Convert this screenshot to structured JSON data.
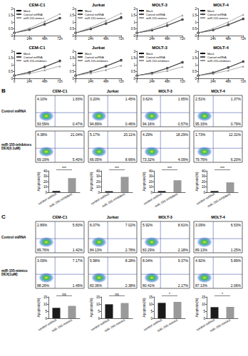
{
  "chart_data": [
    {
      "type": "line",
      "title": "CEM-C1",
      "categories": [
        "0",
        "24h",
        "48h",
        "72h"
      ],
      "ylim": [
        0,
        2
      ],
      "yticks": [
        0,
        0.5,
        1,
        1.5,
        2
      ],
      "grid": false,
      "legend": "upper left",
      "series": [
        {
          "name": "Mock",
          "color": "#000000",
          "marker": "circle",
          "values": [
            0.2,
            0.45,
            0.85,
            1.3
          ]
        },
        {
          "name": "Control miRNA",
          "color": "#555555",
          "marker": "square",
          "values": [
            0.2,
            0.43,
            0.82,
            1.28
          ]
        },
        {
          "name": "miR-155-mimics",
          "color": "#999999",
          "marker": "triangle",
          "values": [
            0.2,
            0.55,
            1.05,
            1.6
          ]
        }
      ]
    },
    {
      "type": "line",
      "title": "Jurkat",
      "categories": [
        "0",
        "24h",
        "48h",
        "72h"
      ],
      "ylim": [
        0,
        2
      ],
      "yticks": [
        0,
        0.5,
        1,
        1.5,
        2
      ],
      "grid": false,
      "legend": "upper left",
      "series": [
        {
          "name": "Mock",
          "color": "#000000",
          "marker": "circle",
          "values": [
            0.2,
            0.5,
            0.9,
            1.35
          ]
        },
        {
          "name": "Control miRNA",
          "color": "#555555",
          "marker": "square",
          "values": [
            0.2,
            0.48,
            0.88,
            1.3
          ]
        },
        {
          "name": "miR-155-mimics",
          "color": "#999999",
          "marker": "triangle",
          "values": [
            0.2,
            0.6,
            1.1,
            1.65
          ]
        }
      ]
    },
    {
      "type": "line",
      "title": "MOLT-3",
      "categories": [
        "0",
        "24h",
        "48h",
        "72h"
      ],
      "ylim": [
        0,
        2
      ],
      "yticks": [
        0,
        0.5,
        1,
        1.5,
        2
      ],
      "grid": false,
      "legend": "upper left",
      "series": [
        {
          "name": "Mock",
          "color": "#000000",
          "marker": "circle",
          "values": [
            0.2,
            0.4,
            0.75,
            1.2
          ]
        },
        {
          "name": "Control miRNA",
          "color": "#555555",
          "marker": "square",
          "values": [
            0.2,
            0.4,
            0.73,
            1.18
          ]
        },
        {
          "name": "miR-155-mimics",
          "color": "#999999",
          "marker": "triangle",
          "values": [
            0.2,
            0.5,
            0.95,
            1.5
          ]
        }
      ]
    },
    {
      "type": "line",
      "title": "MOLT-4",
      "categories": [
        "0",
        "24h",
        "48h",
        "72h"
      ],
      "ylim": [
        0,
        2
      ],
      "yticks": [
        0,
        0.5,
        1,
        1.5,
        2
      ],
      "grid": false,
      "legend": "upper left",
      "series": [
        {
          "name": "Mock",
          "color": "#000000",
          "marker": "circle",
          "values": [
            0.2,
            0.42,
            0.8,
            1.25
          ]
        },
        {
          "name": "Control miRNA",
          "color": "#555555",
          "marker": "square",
          "values": [
            0.2,
            0.41,
            0.78,
            1.22
          ]
        },
        {
          "name": "miR-155-mimics",
          "color": "#999999",
          "marker": "triangle",
          "values": [
            0.2,
            0.52,
            1.0,
            1.55
          ]
        }
      ]
    },
    {
      "type": "line",
      "title": "CEM-C1",
      "categories": [
        "0",
        "24h",
        "48h",
        "72h"
      ],
      "ylim": [
        0,
        2
      ],
      "yticks": [
        0,
        0.5,
        1,
        1.5,
        2
      ],
      "grid": false,
      "legend": "upper left",
      "series": [
        {
          "name": "Mock",
          "color": "#000000",
          "marker": "circle",
          "values": [
            0.2,
            0.45,
            0.85,
            1.3
          ]
        },
        {
          "name": "Control miRNA",
          "color": "#555555",
          "marker": "square",
          "values": [
            0.2,
            0.44,
            0.83,
            1.27
          ]
        },
        {
          "name": "miR-155-inhibitors",
          "color": "#999999",
          "marker": "triangle",
          "values": [
            0.2,
            0.35,
            0.6,
            0.9
          ]
        }
      ]
    },
    {
      "type": "line",
      "title": "Jurkat",
      "categories": [
        "0",
        "24h",
        "48h",
        "72h"
      ],
      "ylim": [
        0,
        2
      ],
      "yticks": [
        0,
        0.5,
        1,
        1.5,
        2
      ],
      "grid": false,
      "legend": "upper left",
      "series": [
        {
          "name": "Mock",
          "color": "#000000",
          "marker": "circle",
          "values": [
            0.2,
            0.5,
            0.9,
            1.35
          ]
        },
        {
          "name": "Control miRNA",
          "color": "#555555",
          "marker": "square",
          "values": [
            0.2,
            0.49,
            0.88,
            1.32
          ]
        },
        {
          "name": "miR-155-inhibitors",
          "color": "#999999",
          "marker": "triangle",
          "values": [
            0.2,
            0.38,
            0.62,
            0.95
          ]
        }
      ]
    },
    {
      "type": "line",
      "title": "MOLT-3",
      "categories": [
        "0",
        "24h",
        "48h",
        "72h"
      ],
      "ylim": [
        0,
        2
      ],
      "yticks": [
        0,
        0.5,
        1,
        1.5,
        2
      ],
      "grid": false,
      "legend": "upper left",
      "series": [
        {
          "name": "Mock",
          "color": "#000000",
          "marker": "circle",
          "values": [
            0.2,
            0.4,
            0.75,
            1.2
          ]
        },
        {
          "name": "Control miRNA",
          "color": "#555555",
          "marker": "square",
          "values": [
            0.2,
            0.39,
            0.74,
            1.17
          ]
        },
        {
          "name": "miR-155-inhibitors",
          "color": "#999999",
          "marker": "triangle",
          "values": [
            0.2,
            0.33,
            0.55,
            0.85
          ]
        }
      ]
    },
    {
      "type": "line",
      "title": "MOLT-4",
      "categories": [
        "0",
        "24h",
        "48h",
        "72h"
      ],
      "ylim": [
        0,
        2
      ],
      "yticks": [
        0,
        0.5,
        1,
        1.5,
        2
      ],
      "grid": false,
      "legend": "upper left",
      "series": [
        {
          "name": "Mock",
          "color": "#000000",
          "marker": "circle",
          "values": [
            0.2,
            0.42,
            0.8,
            1.25
          ]
        },
        {
          "name": "Control miRNA",
          "color": "#555555",
          "marker": "square",
          "values": [
            0.2,
            0.41,
            0.79,
            1.23
          ]
        },
        {
          "name": "miR-155-inhibitors",
          "color": "#999999",
          "marker": "triangle",
          "values": [
            0.2,
            0.34,
            0.58,
            0.88
          ]
        }
      ]
    },
    {
      "type": "quadrant",
      "values": [
        4.1,
        1.83,
        93.59,
        0.47
      ],
      "value_labels": [
        "4.10%",
        "1.83%",
        "93.59%",
        "0.47%"
      ]
    },
    {
      "type": "quadrant",
      "values": [
        3.2,
        1.45,
        94.89,
        0.46
      ],
      "value_labels": [
        "3.20%",
        "1.45%",
        "94.89%",
        "0.46%"
      ]
    },
    {
      "type": "quadrant",
      "values": [
        3.62,
        1.65,
        94.16,
        0.57
      ],
      "value_labels": [
        "3.62%",
        "1.65%",
        "94.16%",
        "0.57%"
      ]
    },
    {
      "type": "quadrant",
      "values": [
        2.51,
        1.37,
        95.33,
        0.79
      ],
      "value_labels": [
        "2.51%",
        "1.37%",
        "95.33%",
        "0.79%"
      ]
    },
    {
      "type": "quadrant",
      "values": [
        4.38,
        21.04,
        69.19,
        5.4
      ],
      "value_labels": [
        "4.38%",
        "21.04%",
        "69.19%",
        "5.40%"
      ]
    },
    {
      "type": "quadrant",
      "values": [
        5.17,
        20.11,
        66.05,
        8.66
      ],
      "value_labels": [
        "5.17%",
        "20.11%",
        "66.05%",
        "8.66%"
      ]
    },
    {
      "type": "quadrant",
      "values": [
        4.29,
        18.29,
        73.32,
        4.09
      ],
      "value_labels": [
        "4.29%",
        "18.29%",
        "73.32%",
        "4.09%"
      ]
    },
    {
      "type": "quadrant",
      "values": [
        1.73,
        12.31,
        79.76,
        6.2
      ],
      "value_labels": [
        "1.73%",
        "12.31%",
        "79.76%",
        "6.20%"
      ]
    },
    {
      "type": "quadrant",
      "values": [
        2.89,
        5.83,
        89.76,
        1.42
      ],
      "value_labels": [
        "2.89%",
        "5.83%",
        "89.76%",
        "1.42%"
      ]
    },
    {
      "type": "quadrant",
      "values": [
        6.07,
        7.02,
        84.13,
        2.78
      ],
      "value_labels": [
        "6.07%",
        "7.02%",
        "84.13%",
        "2.78%"
      ]
    },
    {
      "type": "quadrant",
      "values": [
        5.92,
        8.61,
        83.29,
        2.18
      ],
      "value_labels": [
        "5.92%",
        "8.61%",
        "83.29%",
        "2.18%"
      ]
    },
    {
      "type": "quadrant",
      "values": [
        3.09,
        6.53,
        89.13,
        1.25
      ],
      "value_labels": [
        "3.09%",
        "6.53%",
        "89.13%",
        "1.25%"
      ]
    },
    {
      "type": "quadrant",
      "values": [
        3.09,
        7.17,
        88.26,
        1.49
      ],
      "value_labels": [
        "3.09%",
        "7.17%",
        "88.26%",
        "1.49%"
      ]
    },
    {
      "type": "quadrant",
      "values": [
        5.98,
        8.28,
        83.36,
        2.38
      ],
      "value_labels": [
        "5.98%",
        "8.28%",
        "83.36%",
        "2.38%"
      ]
    },
    {
      "type": "quadrant",
      "values": [
        8.04,
        9.37,
        80.41,
        2.17
      ],
      "value_labels": [
        "8.04%",
        "9.37%",
        "80.41%",
        "2.17%"
      ]
    },
    {
      "type": "quadrant",
      "values": [
        4.92,
        5.89,
        87.13,
        2.06
      ],
      "value_labels": [
        "4.92%",
        "5.89%",
        "87.13%",
        "2.06%"
      ]
    },
    {
      "type": "bar",
      "ylabel": "Apoptosis(%)",
      "categories": [
        "control miRNA",
        "miR-155-inhibitors"
      ],
      "values": [
        2.3,
        26.4
      ],
      "colors": [
        "#1a1a1a",
        "#9a9a9a"
      ],
      "ylim": [
        0,
        40
      ],
      "yticks": [
        0,
        10,
        20,
        30,
        40
      ],
      "grid": false,
      "annotation": "***"
    },
    {
      "type": "bar",
      "ylabel": "Apoptosis(%)",
      "categories": [
        "control miRNA",
        "miR-155-inhibitors"
      ],
      "values": [
        1.9,
        28.8
      ],
      "colors": [
        "#1a1a1a",
        "#9a9a9a"
      ],
      "ylim": [
        0,
        40
      ],
      "yticks": [
        0,
        10,
        20,
        30,
        40
      ],
      "grid": false,
      "annotation": "***"
    },
    {
      "type": "bar",
      "ylabel": "Apoptosis(%)",
      "categories": [
        "control miRNA",
        "miR-155-inhibitors"
      ],
      "values": [
        2.2,
        22.4
      ],
      "colors": [
        "#1a1a1a",
        "#9a9a9a"
      ],
      "ylim": [
        0,
        40
      ],
      "yticks": [
        0,
        10,
        20,
        30,
        40
      ],
      "grid": false,
      "annotation": "***"
    },
    {
      "type": "bar",
      "ylabel": "Apoptosis(%)",
      "categories": [
        "control miRNA",
        "miR-155-inhibitors"
      ],
      "values": [
        2.2,
        18.5
      ],
      "colors": [
        "#1a1a1a",
        "#9a9a9a"
      ],
      "ylim": [
        0,
        40
      ],
      "yticks": [
        0,
        10,
        20,
        30,
        40
      ],
      "grid": false,
      "annotation": "***"
    },
    {
      "type": "bar",
      "ylabel": "Apoptosis(%)",
      "categories": [
        "control miRNA",
        "miR-155-mimics"
      ],
      "values": [
        7.3,
        8.7
      ],
      "colors": [
        "#1a1a1a",
        "#9a9a9a"
      ],
      "ylim": [
        0,
        15
      ],
      "yticks": [
        0,
        5,
        10,
        15
      ],
      "grid": false,
      "annotation": "ns"
    },
    {
      "type": "bar",
      "ylabel": "Apoptosis(%)",
      "categories": [
        "control miRNA",
        "miR-155-mimics"
      ],
      "values": [
        9.8,
        10.7
      ],
      "colors": [
        "#1a1a1a",
        "#9a9a9a"
      ],
      "ylim": [
        0,
        15
      ],
      "yticks": [
        0,
        5,
        10,
        15
      ],
      "grid": false,
      "annotation": "ns"
    },
    {
      "type": "bar",
      "ylabel": "Apoptosis(%)",
      "categories": [
        "control miRNA",
        "miR-155-mimics"
      ],
      "values": [
        10.8,
        11.5
      ],
      "colors": [
        "#1a1a1a",
        "#9a9a9a"
      ],
      "ylim": [
        0,
        15
      ],
      "yticks": [
        0,
        5,
        10,
        15
      ],
      "grid": false,
      "annotation": "*"
    },
    {
      "type": "bar",
      "ylabel": "Apoptosis(%)",
      "categories": [
        "control miRNA",
        "miR-155-mimics"
      ],
      "values": [
        7.8,
        8.0
      ],
      "colors": [
        "#1a1a1a",
        "#9a9a9a"
      ],
      "ylim": [
        0,
        15
      ],
      "yticks": [
        0,
        5,
        10,
        15
      ],
      "grid": false,
      "annotation": "*"
    }
  ],
  "section_labels": [
    "B",
    "C"
  ],
  "column_titles": [
    "CEM-C1",
    "Jurkat",
    "MOLT-3",
    "MOLT-4"
  ],
  "row_labels": [
    [
      "Control miRNA"
    ],
    [
      "miR-155-inhibitors",
      "DEX(0.1uM)"
    ],
    [
      "Control miRNA"
    ],
    [
      "miR-155-mimics",
      "DEX(1uM)"
    ]
  ]
}
